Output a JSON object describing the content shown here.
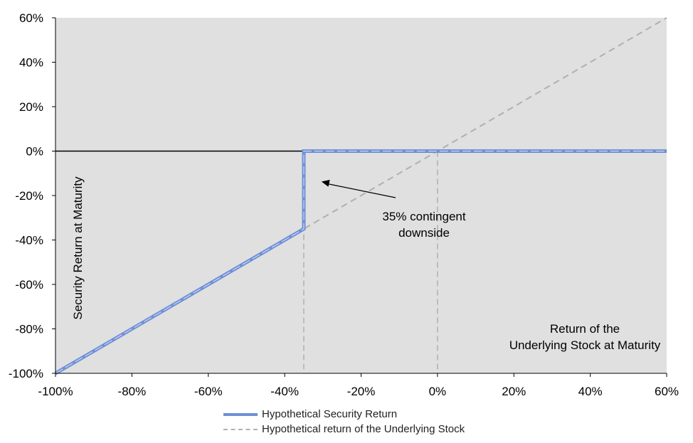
{
  "chart_data": {
    "type": "line",
    "xlim": [
      -100,
      60
    ],
    "ylim": [
      -100,
      60
    ],
    "x_ticks": [
      -100,
      -80,
      -60,
      -40,
      -20,
      0,
      20,
      40,
      60
    ],
    "y_ticks": [
      -100,
      -80,
      -60,
      -40,
      -20,
      0,
      20,
      40,
      60
    ],
    "x_tick_labels": [
      "-100%",
      "-80%",
      "-60%",
      "-40%",
      "-20%",
      "0%",
      "20%",
      "40%",
      "60%"
    ],
    "y_tick_labels": [
      "-100%",
      "-80%",
      "-60%",
      "-40%",
      "-20%",
      "0%",
      "20%",
      "40%",
      "60%"
    ],
    "ylabel": "Security Return at Maturity",
    "xlabel_lines": [
      "Return of the",
      "Underlying Stock at Maturity"
    ],
    "plot_background": "#e0e0e0",
    "grid": false,
    "series": [
      {
        "name": "Hypothetical Security Return",
        "color": "#6f8fd6",
        "style": "solid",
        "x": [
          -100,
          -35,
          -35,
          60
        ],
        "y": [
          -100,
          -35,
          0,
          0
        ]
      },
      {
        "name": "Hypothetical return of the Underlying Stock",
        "color": "#b0b0b0",
        "style": "dashed",
        "x": [
          -100,
          60
        ],
        "y": [
          -100,
          60
        ]
      }
    ],
    "reference_lines": [
      {
        "axis": "x",
        "value": -35,
        "color": "#b0b0b0",
        "style": "dashed"
      },
      {
        "axis": "x",
        "value": 0,
        "color": "#b0b0b0",
        "style": "dashed"
      },
      {
        "axis": "y",
        "value": 0,
        "color": "#000000",
        "style": "solid"
      }
    ],
    "annotations": [
      {
        "lines": [
          "35% contingent",
          "downside"
        ],
        "arrow_to": [
          -30,
          -15
        ]
      }
    ],
    "legend_position": "bottom"
  }
}
